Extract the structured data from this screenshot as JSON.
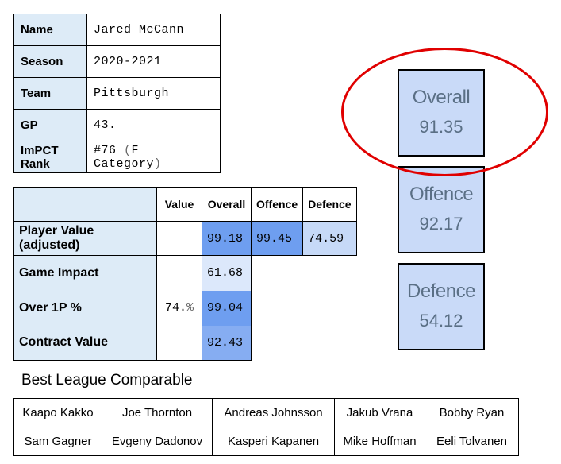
{
  "player": {
    "name_label": "Name",
    "name": "Jared McCann",
    "season_label": "Season",
    "season": "2020-2021",
    "team_label": "Team",
    "team": "Pittsburgh",
    "gp_label": "GP",
    "gp": "43.",
    "rank_label": "ImPCT Rank",
    "rank_num": "#76 ",
    "rank_paren_open": "(",
    "rank_category": "F Category",
    "rank_paren_close": ")"
  },
  "metrics": {
    "headers": {
      "value": "Value",
      "overall": "Overall",
      "offence": "Offence",
      "defence": "Defence"
    },
    "player_value": {
      "label": "Player Value (adjusted)",
      "overall": "99.18",
      "offence": "99.45",
      "defence": "74.59"
    },
    "game_impact": {
      "label": "Game Impact",
      "overall": "61.68"
    },
    "over_1p": {
      "label": "Over 1P %",
      "value_num": "74.",
      "value_pct": "%",
      "overall": "99.04"
    },
    "contract_value": {
      "label": "Contract Value",
      "overall": "92.43"
    }
  },
  "scores": {
    "overall": {
      "label": "Overall",
      "value": "91.35"
    },
    "offence": {
      "label": "Offence",
      "value": "92.17"
    },
    "defence": {
      "label": "Defence",
      "value": "54.12"
    }
  },
  "comparables": {
    "title": "Best League Comparable",
    "rows": [
      [
        "Kaapo Kakko",
        "Joe Thornton",
        "Andreas Johnsson",
        "Jakub Vrana",
        "Bobby Ryan"
      ],
      [
        "Sam Gagner",
        "Evgeny Dadonov",
        "Kasperi Kapanen",
        "Mike Hoffman",
        "Eeli Tolvanen"
      ]
    ]
  },
  "colors": {
    "accent_blue": "#6e9ef0",
    "light_blue": "#ddebf7",
    "highlight_circle": "#e00000"
  }
}
